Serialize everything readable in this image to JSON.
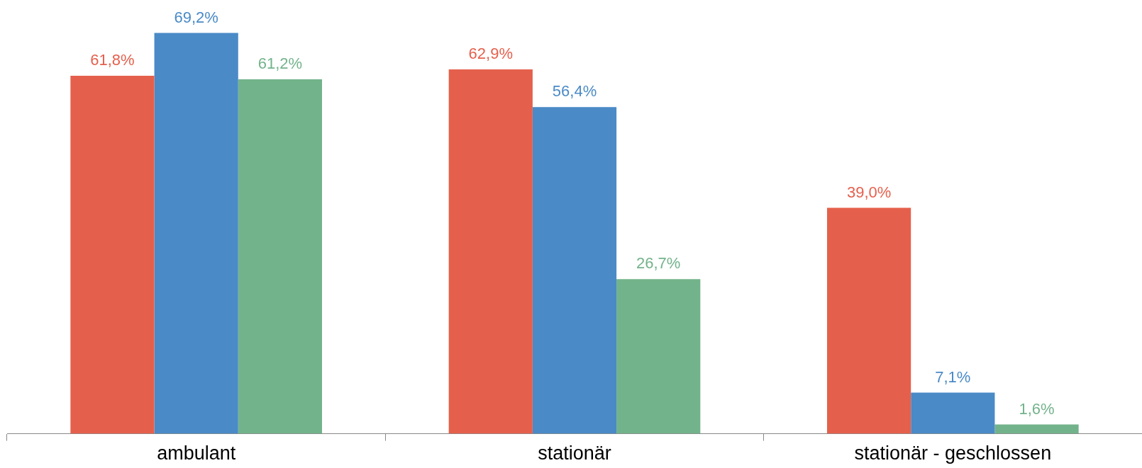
{
  "chart_data": {
    "type": "bar",
    "categories": [
      "ambulant",
      "stationär",
      "stationär - geschlossen"
    ],
    "series": [
      {
        "color": "#e5604c",
        "values": [
          61.8,
          62.9,
          39.0
        ],
        "value_labels": [
          "61,8%",
          "62,9%",
          "39,0%"
        ]
      },
      {
        "color": "#4a8ac7",
        "values": [
          69.2,
          56.4,
          7.1
        ],
        "value_labels": [
          "69,2%",
          "56,4%",
          "7,1%"
        ]
      },
      {
        "color": "#73b38b",
        "values": [
          61.2,
          26.7,
          1.6
        ],
        "value_labels": [
          "61,2%",
          "26,7%",
          "1,6%"
        ]
      }
    ],
    "legend": false,
    "grid": false
  }
}
